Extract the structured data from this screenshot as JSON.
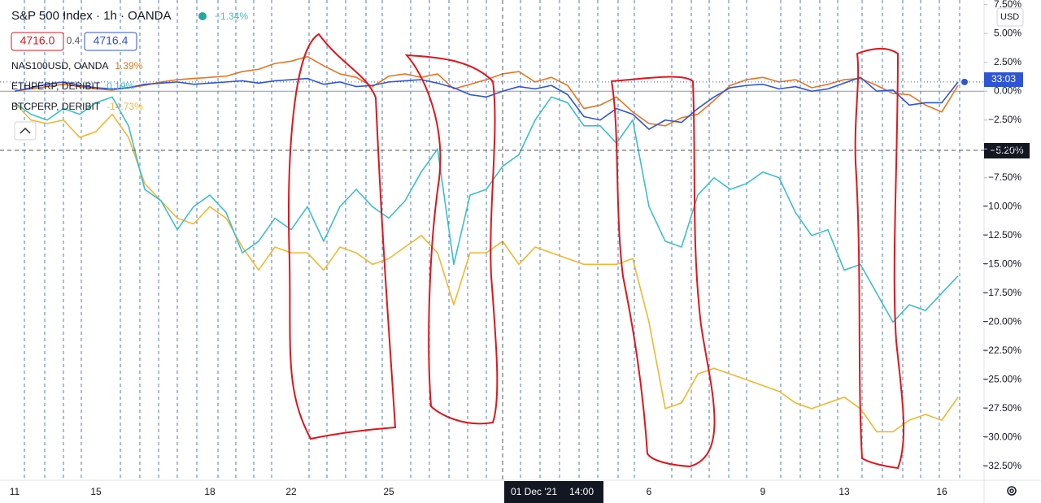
{
  "chart_data": {
    "type": "line",
    "title": "S&P 500 Index · 1h · OANDA",
    "change": "−1.34%",
    "bid": "4716.0",
    "spread": "0.4",
    "ask": "4716.4",
    "currency": "USD",
    "countdown": "33:03",
    "crosshair": {
      "date": "01 Dec '21",
      "time": "14:00",
      "value": "−5.20%"
    },
    "categories": [
      "11",
      null,
      null,
      null,
      null,
      "15",
      null,
      null,
      null,
      null,
      null,
      null,
      "18",
      null,
      null,
      null,
      null,
      "22",
      null,
      null,
      null,
      null,
      null,
      "25",
      null,
      null,
      null,
      null,
      null,
      null,
      null,
      null,
      null,
      null,
      null,
      null,
      null,
      null,
      null,
      "6",
      null,
      null,
      null,
      null,
      null,
      null,
      "9",
      null,
      null,
      null,
      null,
      "13",
      null,
      null,
      null,
      null,
      null,
      "16",
      null
    ],
    "series": [
      {
        "color": "#2f55d4",
        "values": [
          0,
          0.3,
          0.6,
          0.8,
          0.5,
          0.3,
          0.2,
          0.3,
          0.6,
          0.7,
          0.8,
          0.6,
          0.7,
          0.8,
          0.9,
          0.7,
          0.9,
          1.0,
          1.1,
          0.6,
          0.8,
          0.4,
          0.5,
          0.8,
          0.9,
          1.0,
          0.7,
          0.3,
          -0.3,
          -0.5,
          0.0,
          0.4,
          0.2,
          0.5,
          -0.3,
          -2.2,
          -2.5,
          -1.5,
          -2.0,
          -3.3,
          -2.5,
          -2.7,
          -1.5,
          -0.5,
          0.3,
          0.5,
          0.6,
          0.2,
          0.4,
          0.0,
          0.2,
          0.7,
          1.2,
          0.0,
          0.1,
          -1.2,
          -1.0,
          -1.0,
          0.8
        ]
      },
      {
        "name": "NAS100USD, OANDA",
        "change": "1.39%",
        "color": "#e8741f",
        "values": [
          0,
          0.2,
          0.4,
          0.6,
          0.4,
          0.2,
          0.1,
          0.3,
          0.5,
          0.8,
          1.0,
          1.1,
          1.2,
          1.3,
          1.7,
          1.9,
          2.4,
          2.6,
          3.0,
          2.2,
          1.5,
          1.2,
          0.4,
          1.3,
          1.5,
          1.2,
          1.5,
          0.2,
          0.6,
          1.0,
          1.5,
          1.7,
          0.8,
          1.2,
          0.5,
          -1.5,
          -1.2,
          -0.5,
          -1.8,
          -2.8,
          -3.0,
          -2.3,
          -2.0,
          -0.8,
          0.5,
          1.0,
          1.2,
          0.8,
          1.0,
          0.3,
          0.6,
          1.0,
          1.1,
          0.5,
          -0.2,
          -0.3,
          -1.2,
          -1.8,
          0.5
        ]
      },
      {
        "name": "ETHPERP, DERIBIT",
        "change": "0.19%",
        "color": "#3bbfcc",
        "values": [
          -1,
          -2,
          -2.5,
          -1.5,
          -2,
          -1,
          -0.5,
          -3,
          -8.5,
          -9.5,
          -12,
          -10,
          -9,
          -10.5,
          -14,
          -13,
          -11,
          -12,
          -10,
          -13,
          -10,
          -8.5,
          -10,
          -11,
          -9.5,
          -7,
          -5,
          -15,
          -9,
          -8.5,
          -6.5,
          -5.5,
          -2.5,
          -0.5,
          -1,
          -3,
          -3,
          -4.5,
          -2.5,
          -10,
          -13,
          -13.5,
          -9,
          -7.5,
          -8.5,
          -8,
          -7,
          -7.5,
          -10.5,
          -12.5,
          -12,
          -15.5,
          -15,
          -17.5,
          -20,
          -18.5,
          -19,
          -17.5,
          -16
        ]
      },
      {
        "name": "BTCPERP, DERIBIT",
        "change": "-14.73%",
        "color": "#f2b72e",
        "values": [
          -1,
          -2.5,
          -2.8,
          -2.5,
          -4,
          -3.5,
          -2,
          -4,
          -8,
          -9.5,
          -11,
          -11.5,
          -10,
          -11,
          -13.5,
          -15.5,
          -13.5,
          -14,
          -14,
          -15.5,
          -13.5,
          -14,
          -15,
          -14.5,
          -13.5,
          -12.5,
          -14,
          -18.5,
          -14,
          -14,
          -13,
          -15,
          -13.5,
          -14,
          -14.5,
          -15,
          -15,
          -15,
          -14.5,
          -20,
          -27.5,
          -27,
          -24.5,
          -24,
          -24.5,
          -25,
          -25.5,
          -26,
          -27,
          -27.5,
          -27,
          -26.5,
          -27.5,
          -29.5,
          -29.5,
          -28.5,
          -28,
          -28.5,
          -26.5
        ]
      }
    ],
    "ylim": [
      -33.7,
      7.9
    ],
    "yticks": [
      {
        "value": 7.5,
        "label": "7.50%"
      },
      {
        "value": 5,
        "label": "5.00%"
      },
      {
        "value": 2.5,
        "label": "2.50%"
      },
      {
        "value": 0,
        "label": "0.00%"
      },
      {
        "value": -2.5,
        "label": "−2.50%"
      },
      {
        "value": -5,
        "label": "−5.00%"
      },
      {
        "value": -7.5,
        "label": "−7.50%"
      },
      {
        "value": -10,
        "label": "−10.00%"
      },
      {
        "value": -12.5,
        "label": "−12.50%"
      },
      {
        "value": -15,
        "label": "−15.00%"
      },
      {
        "value": -17.5,
        "label": "−17.50%"
      },
      {
        "value": -20,
        "label": "−20.00%"
      },
      {
        "value": -22.5,
        "label": "−22.50%"
      },
      {
        "value": -25,
        "label": "−25.00%"
      },
      {
        "value": -27.5,
        "label": "−27.50%"
      },
      {
        "value": -30,
        "label": "−30.00%"
      },
      {
        "value": -32.5,
        "label": "−32.50%"
      }
    ],
    "grid": false
  }
}
